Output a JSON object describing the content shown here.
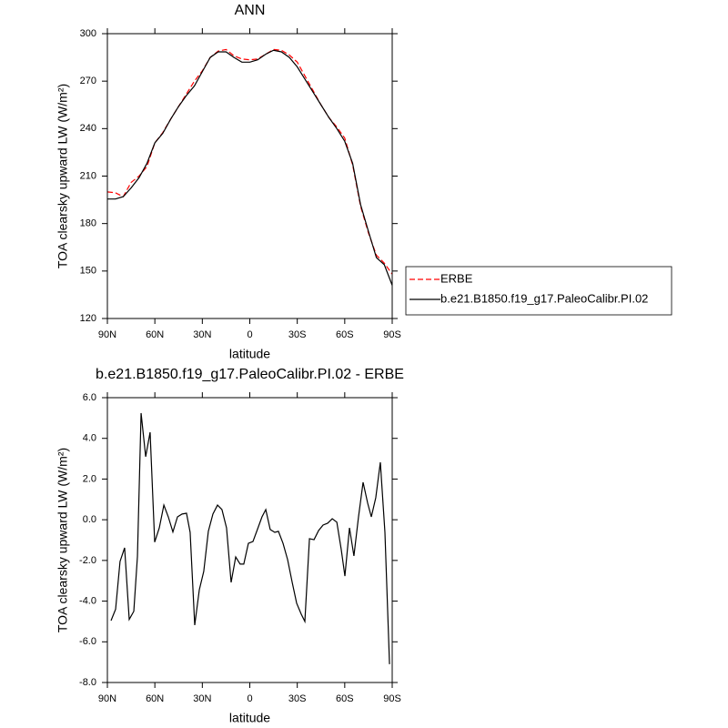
{
  "chart_data": [
    {
      "type": "line",
      "title": "ANN",
      "xlabel": "latitude",
      "ylabel": "TOA clearsky upward LW (W/m²)",
      "x": [
        90,
        85,
        80,
        75,
        70,
        65,
        60,
        55,
        50,
        45,
        40,
        35,
        30,
        25,
        20,
        15,
        10,
        5,
        0,
        -5,
        -10,
        -15,
        -20,
        -25,
        -30,
        -35,
        -40,
        -45,
        -50,
        -55,
        -60,
        -65,
        -70,
        -75,
        -80,
        -85,
        -90
      ],
      "series": [
        {
          "name": "ERBE",
          "color": "#ff0000",
          "dash": true,
          "values": [
            200,
            199.5,
            197,
            206,
            210,
            216,
            231,
            237.5,
            246,
            254,
            262,
            270,
            276.5,
            285,
            289,
            290,
            286,
            284,
            283.5,
            284,
            287,
            290,
            289.5,
            286.5,
            282,
            273,
            264,
            255,
            247,
            241,
            234,
            217,
            191,
            174,
            160,
            155,
            148
          ]
        },
        {
          "name": "b.e21.B1850.f19_g17.PaleoCalibr.PI.02",
          "color": "#000000",
          "dash": false,
          "values": [
            195.5,
            195.5,
            197,
            202.5,
            209,
            218,
            231,
            237,
            246,
            254,
            261,
            267,
            276,
            285,
            288.5,
            288.5,
            285,
            282,
            282,
            283.5,
            287,
            289.5,
            288.5,
            285,
            279,
            271,
            263,
            255,
            247,
            240,
            232,
            218,
            192,
            175,
            158.5,
            154,
            141
          ]
        }
      ],
      "xlim": [
        90,
        -90
      ],
      "xticks": [
        {
          "value": 90,
          "label": "90N"
        },
        {
          "value": 60,
          "label": "60N"
        },
        {
          "value": 30,
          "label": "30N"
        },
        0,
        {
          "value": -30,
          "label": "30S"
        },
        {
          "value": -60,
          "label": "60S"
        },
        {
          "value": -90,
          "label": "90S"
        }
      ],
      "ylim": [
        120,
        300
      ],
      "yticks": [
        120,
        150,
        180,
        210,
        240,
        270,
        300
      ],
      "legend": "right"
    },
    {
      "type": "line",
      "title": "b.e21.B1850.f19_g17.PaleoCalibr.PI.02 - ERBE",
      "xlabel": "latitude",
      "ylabel": "TOA clearsky upward LW (W/m²)",
      "x": [
        87.7,
        84.8,
        82.0,
        79.1,
        76.2,
        73.3,
        71.0,
        68.7,
        65.8,
        63.0,
        60.1,
        57.2,
        54.3,
        51.5,
        48.6,
        45.7,
        42.8,
        40.0,
        37.7,
        34.8,
        31.9,
        29.1,
        26.2,
        23.3,
        20.4,
        17.6,
        14.7,
        11.8,
        8.9,
        6.1,
        3.8,
        0.9,
        -2.0,
        -4.8,
        -7.7,
        -10.1,
        -12.9,
        -15.8,
        -18.1,
        -21.0,
        -23.9,
        -26.8,
        -29.6,
        -32.5,
        -34.8,
        -37.7,
        -40.6,
        -43.5,
        -46.3,
        -49.2,
        -52.1,
        -55.0,
        -57.8,
        -60.1,
        -63.0,
        -65.8,
        -68.7,
        -71.6,
        -74.5,
        -76.8,
        -79.6,
        -82.5,
        -85.4,
        -88.3
      ],
      "series": [
        {
          "color": "#000000",
          "values": [
            -4.96,
            -4.4,
            -2.05,
            -1.38,
            -4.9,
            -4.5,
            -1.8,
            5.24,
            3.1,
            4.3,
            -1.1,
            -0.4,
            0.72,
            0.14,
            -0.6,
            0.14,
            0.28,
            0.32,
            -0.62,
            -5.18,
            -3.44,
            -2.54,
            -0.57,
            0.28,
            0.72,
            0.5,
            -0.4,
            -3.08,
            -1.83,
            -2.18,
            -2.18,
            -1.16,
            -1.07,
            -0.48,
            0.14,
            0.5,
            -0.48,
            -0.62,
            -0.57,
            -1.16,
            -1.96,
            -3.08,
            -4.1,
            -4.64,
            -5.0,
            -0.93,
            -0.98,
            -0.53,
            -0.26,
            -0.17,
            0.05,
            -0.12,
            -1.47,
            -2.77,
            -0.4,
            -1.78,
            0.14,
            1.84,
            0.81,
            0.14,
            1.08,
            2.82,
            -0.62,
            -7.1
          ]
        }
      ],
      "xlim": [
        90,
        -90
      ],
      "xticks": [
        {
          "value": 90,
          "label": "90N"
        },
        {
          "value": 60,
          "label": "60N"
        },
        {
          "value": 30,
          "label": "30N"
        },
        0,
        {
          "value": -30,
          "label": "30S"
        },
        {
          "value": -60,
          "label": "60S"
        },
        {
          "value": -90,
          "label": "90S"
        }
      ],
      "ylim": [
        -8,
        6
      ],
      "yticks": [
        {
          "value": -8,
          "label": "-8.0"
        },
        {
          "value": -6,
          "label": "-6.0"
        },
        {
          "value": -4,
          "label": "-4.0"
        },
        {
          "value": -2,
          "label": "-2.0"
        },
        {
          "value": 0,
          "label": "0.0"
        },
        {
          "value": 2,
          "label": "2.0"
        },
        {
          "value": 4,
          "label": "4.0"
        },
        {
          "value": 6,
          "label": "6.0"
        }
      ]
    }
  ]
}
